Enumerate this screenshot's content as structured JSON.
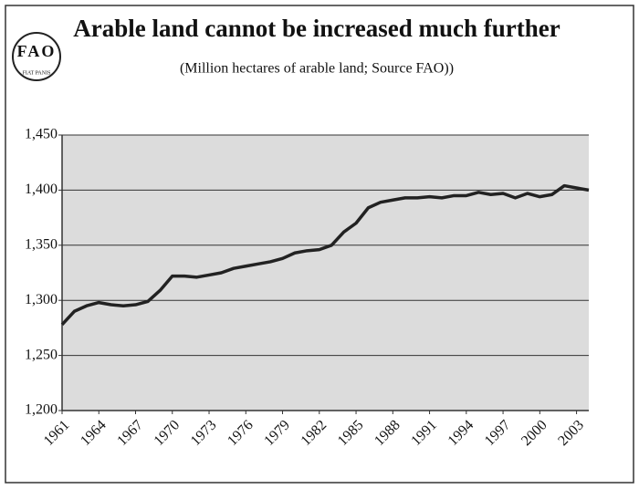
{
  "chart_data": {
    "type": "line",
    "title": "Arable land cannot be increased much further",
    "subtitle": "(Million hectares of arable land; Source FAO))",
    "logo": {
      "text": "FAO",
      "motto": "FIAT PANIS"
    },
    "x": [
      1961,
      1962,
      1963,
      1964,
      1965,
      1966,
      1967,
      1968,
      1969,
      1970,
      1971,
      1972,
      1973,
      1974,
      1975,
      1976,
      1977,
      1978,
      1979,
      1980,
      1981,
      1982,
      1983,
      1984,
      1985,
      1986,
      1987,
      1988,
      1989,
      1990,
      1991,
      1992,
      1993,
      1994,
      1995,
      1996,
      1997,
      1998,
      1999,
      2000,
      2001,
      2002,
      2003,
      2004
    ],
    "series": [
      {
        "color": "#222222",
        "values": [
          1278,
          1290,
          1295,
          1298,
          1296,
          1295,
          1296,
          1299,
          1309,
          1322,
          1322,
          1321,
          1323,
          1325,
          1329,
          1331,
          1333,
          1335,
          1338,
          1343,
          1345,
          1346,
          1350,
          1362,
          1370,
          1384,
          1389,
          1391,
          1393,
          1393,
          1394,
          1393,
          1395,
          1395,
          1398,
          1396,
          1397,
          1393,
          1397,
          1394,
          1396,
          1404,
          1402,
          1400
        ]
      }
    ],
    "xlim": [
      1961,
      2004
    ],
    "xticks": [
      1961,
      1964,
      1967,
      1970,
      1973,
      1976,
      1979,
      1982,
      1985,
      1988,
      1991,
      1994,
      1997,
      2000,
      2003
    ],
    "ylim": [
      1200,
      1450
    ],
    "yticks": [
      {
        "value": 1200,
        "label": "1,200"
      },
      {
        "value": 1250,
        "label": "1,250"
      },
      {
        "value": 1300,
        "label": "1,300"
      },
      {
        "value": 1350,
        "label": "1,350"
      },
      {
        "value": 1400,
        "label": "1,400"
      },
      {
        "value": 1450,
        "label": "1,450"
      }
    ],
    "grid": true
  }
}
